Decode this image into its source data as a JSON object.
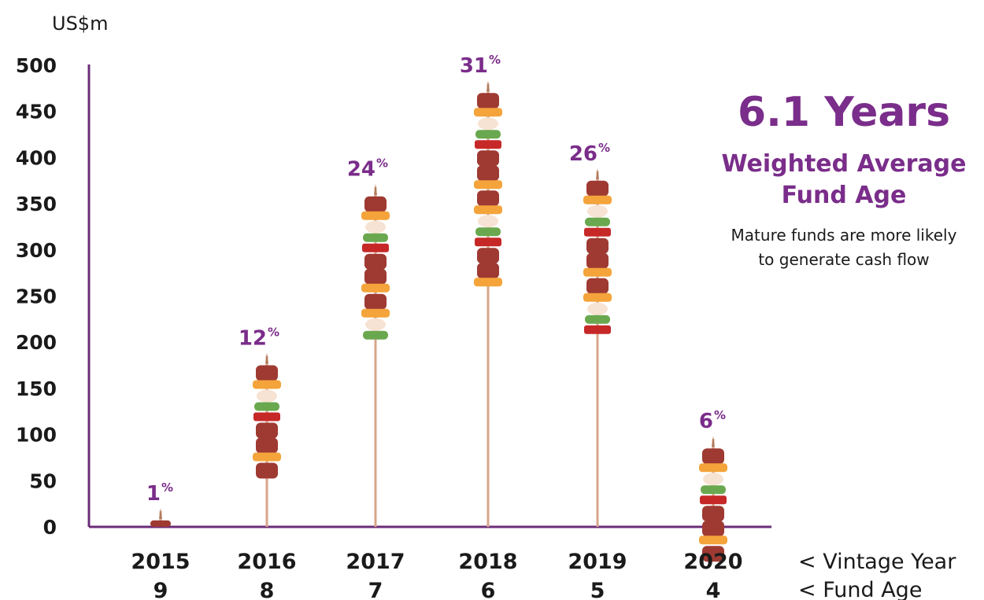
{
  "colors": {
    "axis": "#6b2c7a",
    "accent": "#7a2d8a",
    "text": "#1a1a1a",
    "stick": "#d9a58a",
    "meat": "#9e3a32",
    "pepper_red": "#c62828",
    "pepper_green": "#6aa84f",
    "pineapple": "#f4a43a",
    "onion": "#f7e3d3"
  },
  "unit_label": "US$m",
  "legend": {
    "vintage": "< Vintage Year",
    "age": "< Fund Age"
  },
  "callout": {
    "headline": "6.1 Years",
    "subhead_line1": "Weighted Average",
    "subhead_line2": "Fund Age",
    "note_line1": "Mature funds are more likely",
    "note_line2": "to generate cash flow"
  },
  "chart_data": {
    "type": "bar",
    "title": "",
    "xlabel": "",
    "ylabel": "US$m",
    "ylim": [
      0,
      500
    ],
    "yticks": [
      0,
      50,
      100,
      150,
      200,
      250,
      300,
      350,
      400,
      450,
      500
    ],
    "categories": [
      "2015",
      "2016",
      "2017",
      "2018",
      "2019",
      "2020"
    ],
    "fund_age": [
      "9",
      "8",
      "7",
      "6",
      "5",
      "4"
    ],
    "values": [
      7,
      175,
      358,
      470,
      375,
      85
    ],
    "shares": [
      "1",
      "12",
      "24",
      "31",
      "26",
      "6"
    ],
    "share_suffix": "%",
    "grid": false,
    "legend": "none"
  }
}
